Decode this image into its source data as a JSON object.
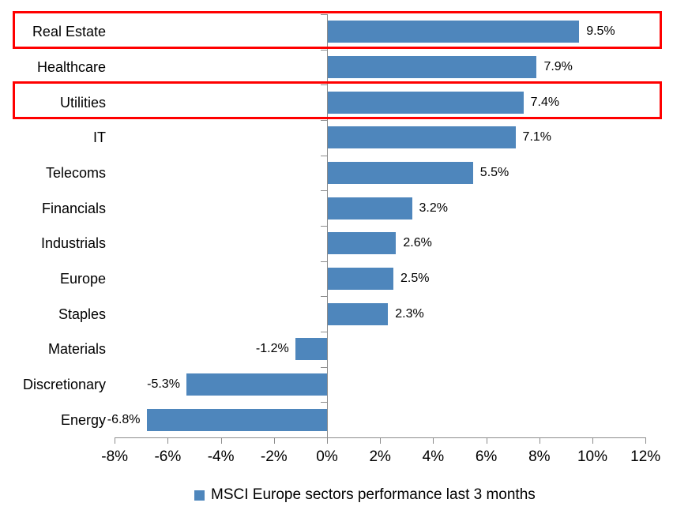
{
  "chart_data": {
    "type": "bar",
    "orientation": "horizontal",
    "title": "",
    "categories": [
      "Real Estate",
      "Healthcare",
      "Utilities",
      "IT",
      "Telecoms",
      "Financials",
      "Industrials",
      "Europe",
      "Staples",
      "Materials",
      "Discretionary",
      "Energy"
    ],
    "values": [
      9.5,
      7.9,
      7.4,
      7.1,
      5.5,
      3.2,
      2.6,
      2.5,
      2.3,
      -1.2,
      -5.3,
      -6.8
    ],
    "value_labels": [
      "9.5%",
      "7.9%",
      "7.4%",
      "7.1%",
      "5.5%",
      "3.2%",
      "2.6%",
      "2.5%",
      "2.3%",
      "-1.2%",
      "-5.3%",
      "-6.8%"
    ],
    "x_tick_labels": [
      "-8%",
      "-6%",
      "-4%",
      "-2%",
      "0%",
      "2%",
      "4%",
      "6%",
      "8%",
      "10%",
      "12%"
    ],
    "x_tick_values": [
      -8,
      -6,
      -4,
      -2,
      0,
      2,
      4,
      6,
      8,
      10,
      12
    ],
    "xlim": [
      -8,
      12
    ],
    "grid": false,
    "legend": "MSCI Europe sectors performance last 3 months",
    "legend_position": "bottom",
    "highlighted_categories": [
      "Real Estate",
      "Utilities"
    ],
    "colors": {
      "bar": "#4E86BC",
      "highlight_box": "#FF0000",
      "axis": "#8C8C8C",
      "text": "#000000"
    }
  }
}
